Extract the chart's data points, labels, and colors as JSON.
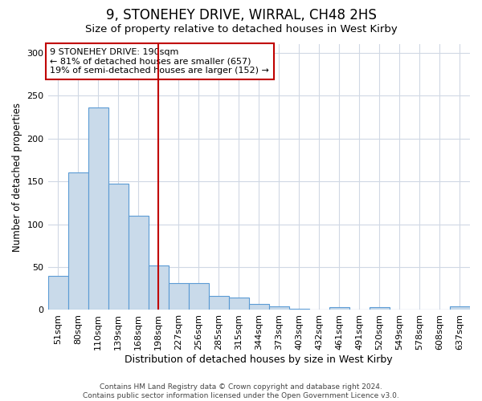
{
  "title": "9, STONEHEY DRIVE, WIRRAL, CH48 2HS",
  "subtitle": "Size of property relative to detached houses in West Kirby",
  "xlabel": "Distribution of detached houses by size in West Kirby",
  "ylabel": "Number of detached properties",
  "categories": [
    "51sqm",
    "80sqm",
    "110sqm",
    "139sqm",
    "168sqm",
    "198sqm",
    "227sqm",
    "256sqm",
    "285sqm",
    "315sqm",
    "344sqm",
    "373sqm",
    "403sqm",
    "432sqm",
    "461sqm",
    "491sqm",
    "520sqm",
    "549sqm",
    "578sqm",
    "608sqm",
    "637sqm"
  ],
  "values": [
    40,
    160,
    236,
    147,
    110,
    52,
    31,
    31,
    16,
    14,
    7,
    4,
    1,
    0,
    3,
    0,
    3,
    0,
    0,
    0,
    4
  ],
  "bar_color": "#c9daea",
  "bar_edge_color": "#5b9bd5",
  "vline_x": 5.0,
  "vline_color": "#c00000",
  "annotation_text": "9 STONEHEY DRIVE: 190sqm\n← 81% of detached houses are smaller (657)\n19% of semi-detached houses are larger (152) →",
  "annotation_box_color": "#ffffff",
  "annotation_box_edge": "#c00000",
  "ylim": [
    0,
    310
  ],
  "yticks": [
    0,
    50,
    100,
    150,
    200,
    250,
    300
  ],
  "plot_bg_color": "#ffffff",
  "fig_bg_color": "#ffffff",
  "grid_color": "#d0d8e4",
  "footer": "Contains HM Land Registry data © Crown copyright and database right 2024.\nContains public sector information licensed under the Open Government Licence v3.0.",
  "title_fontsize": 12,
  "subtitle_fontsize": 9.5,
  "ylabel_fontsize": 8.5,
  "xlabel_fontsize": 9,
  "tick_fontsize": 8,
  "footer_fontsize": 6.5
}
